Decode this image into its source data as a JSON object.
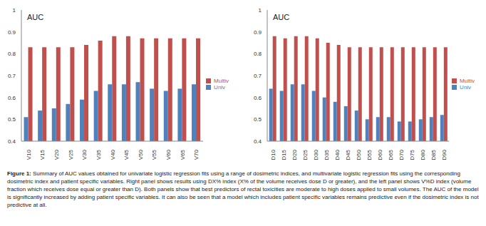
{
  "chart_data": [
    {
      "type": "bar",
      "title": "AUC",
      "categories": [
        "V10",
        "V15",
        "V20",
        "V25",
        "V30",
        "V35",
        "V40",
        "V45",
        "V50",
        "V55",
        "V60",
        "V65",
        "V70"
      ],
      "series": [
        {
          "name": "Univ",
          "color": "#4f81bd",
          "values": [
            0.51,
            0.54,
            0.55,
            0.57,
            0.59,
            0.63,
            0.66,
            0.66,
            0.67,
            0.64,
            0.63,
            0.64,
            0.66
          ]
        },
        {
          "name": "Multiv",
          "color": "#c0504d",
          "values": [
            0.83,
            0.83,
            0.83,
            0.83,
            0.84,
            0.86,
            0.88,
            0.88,
            0.87,
            0.87,
            0.87,
            0.87,
            0.87
          ]
        }
      ],
      "ylim": [
        0.4,
        1
      ],
      "yticks": [
        0.4,
        0.5,
        0.6,
        0.7,
        0.8,
        0.9,
        1
      ],
      "grid": false,
      "legend": "right"
    },
    {
      "type": "bar",
      "title": "AUC",
      "categories": [
        "D10",
        "D15",
        "D20",
        "D25",
        "D30",
        "D35",
        "D40",
        "D45",
        "D50",
        "D55",
        "D60",
        "D65",
        "D70",
        "D75",
        "D80",
        "D85",
        "D90"
      ],
      "series": [
        {
          "name": "Univ",
          "color": "#4f81bd",
          "values": [
            0.64,
            0.63,
            0.66,
            0.66,
            0.63,
            0.6,
            0.58,
            0.56,
            0.54,
            0.5,
            0.51,
            0.51,
            0.49,
            0.49,
            0.5,
            0.51,
            0.52
          ]
        },
        {
          "name": "Multiv",
          "color": "#c0504d",
          "values": [
            0.88,
            0.87,
            0.88,
            0.88,
            0.87,
            0.85,
            0.84,
            0.83,
            0.83,
            0.83,
            0.83,
            0.83,
            0.83,
            0.83,
            0.83,
            0.83,
            0.83
          ]
        }
      ],
      "ylim": [
        0.4,
        1
      ],
      "yticks": [
        0.4,
        0.5,
        0.6,
        0.7,
        0.8,
        0.9,
        1
      ],
      "grid": false,
      "legend": "right"
    }
  ],
  "caption": {
    "label": "Figure 1:",
    "text": "Summary of AUC values obtained for univariate logistic regression fits using a range of dosimetric indices, and multivariate logistic regression fits using the corresponding dosimetric index and patient specific variables. Right panel shows results using DX% index (X% of the volume receives dose D or greater), and the left panel shows V%D index (volume fraction which receives dose equal or greater than D). Both panels show that best predictors of rectal toxicities are moderate to high doses applied to small volumes. The AUC of the model is significantly increased by adding patient specific variables. It can also be seen that a model which includes patient specific variables remains predictive even if the dosimetric index is not predictive at all."
  }
}
